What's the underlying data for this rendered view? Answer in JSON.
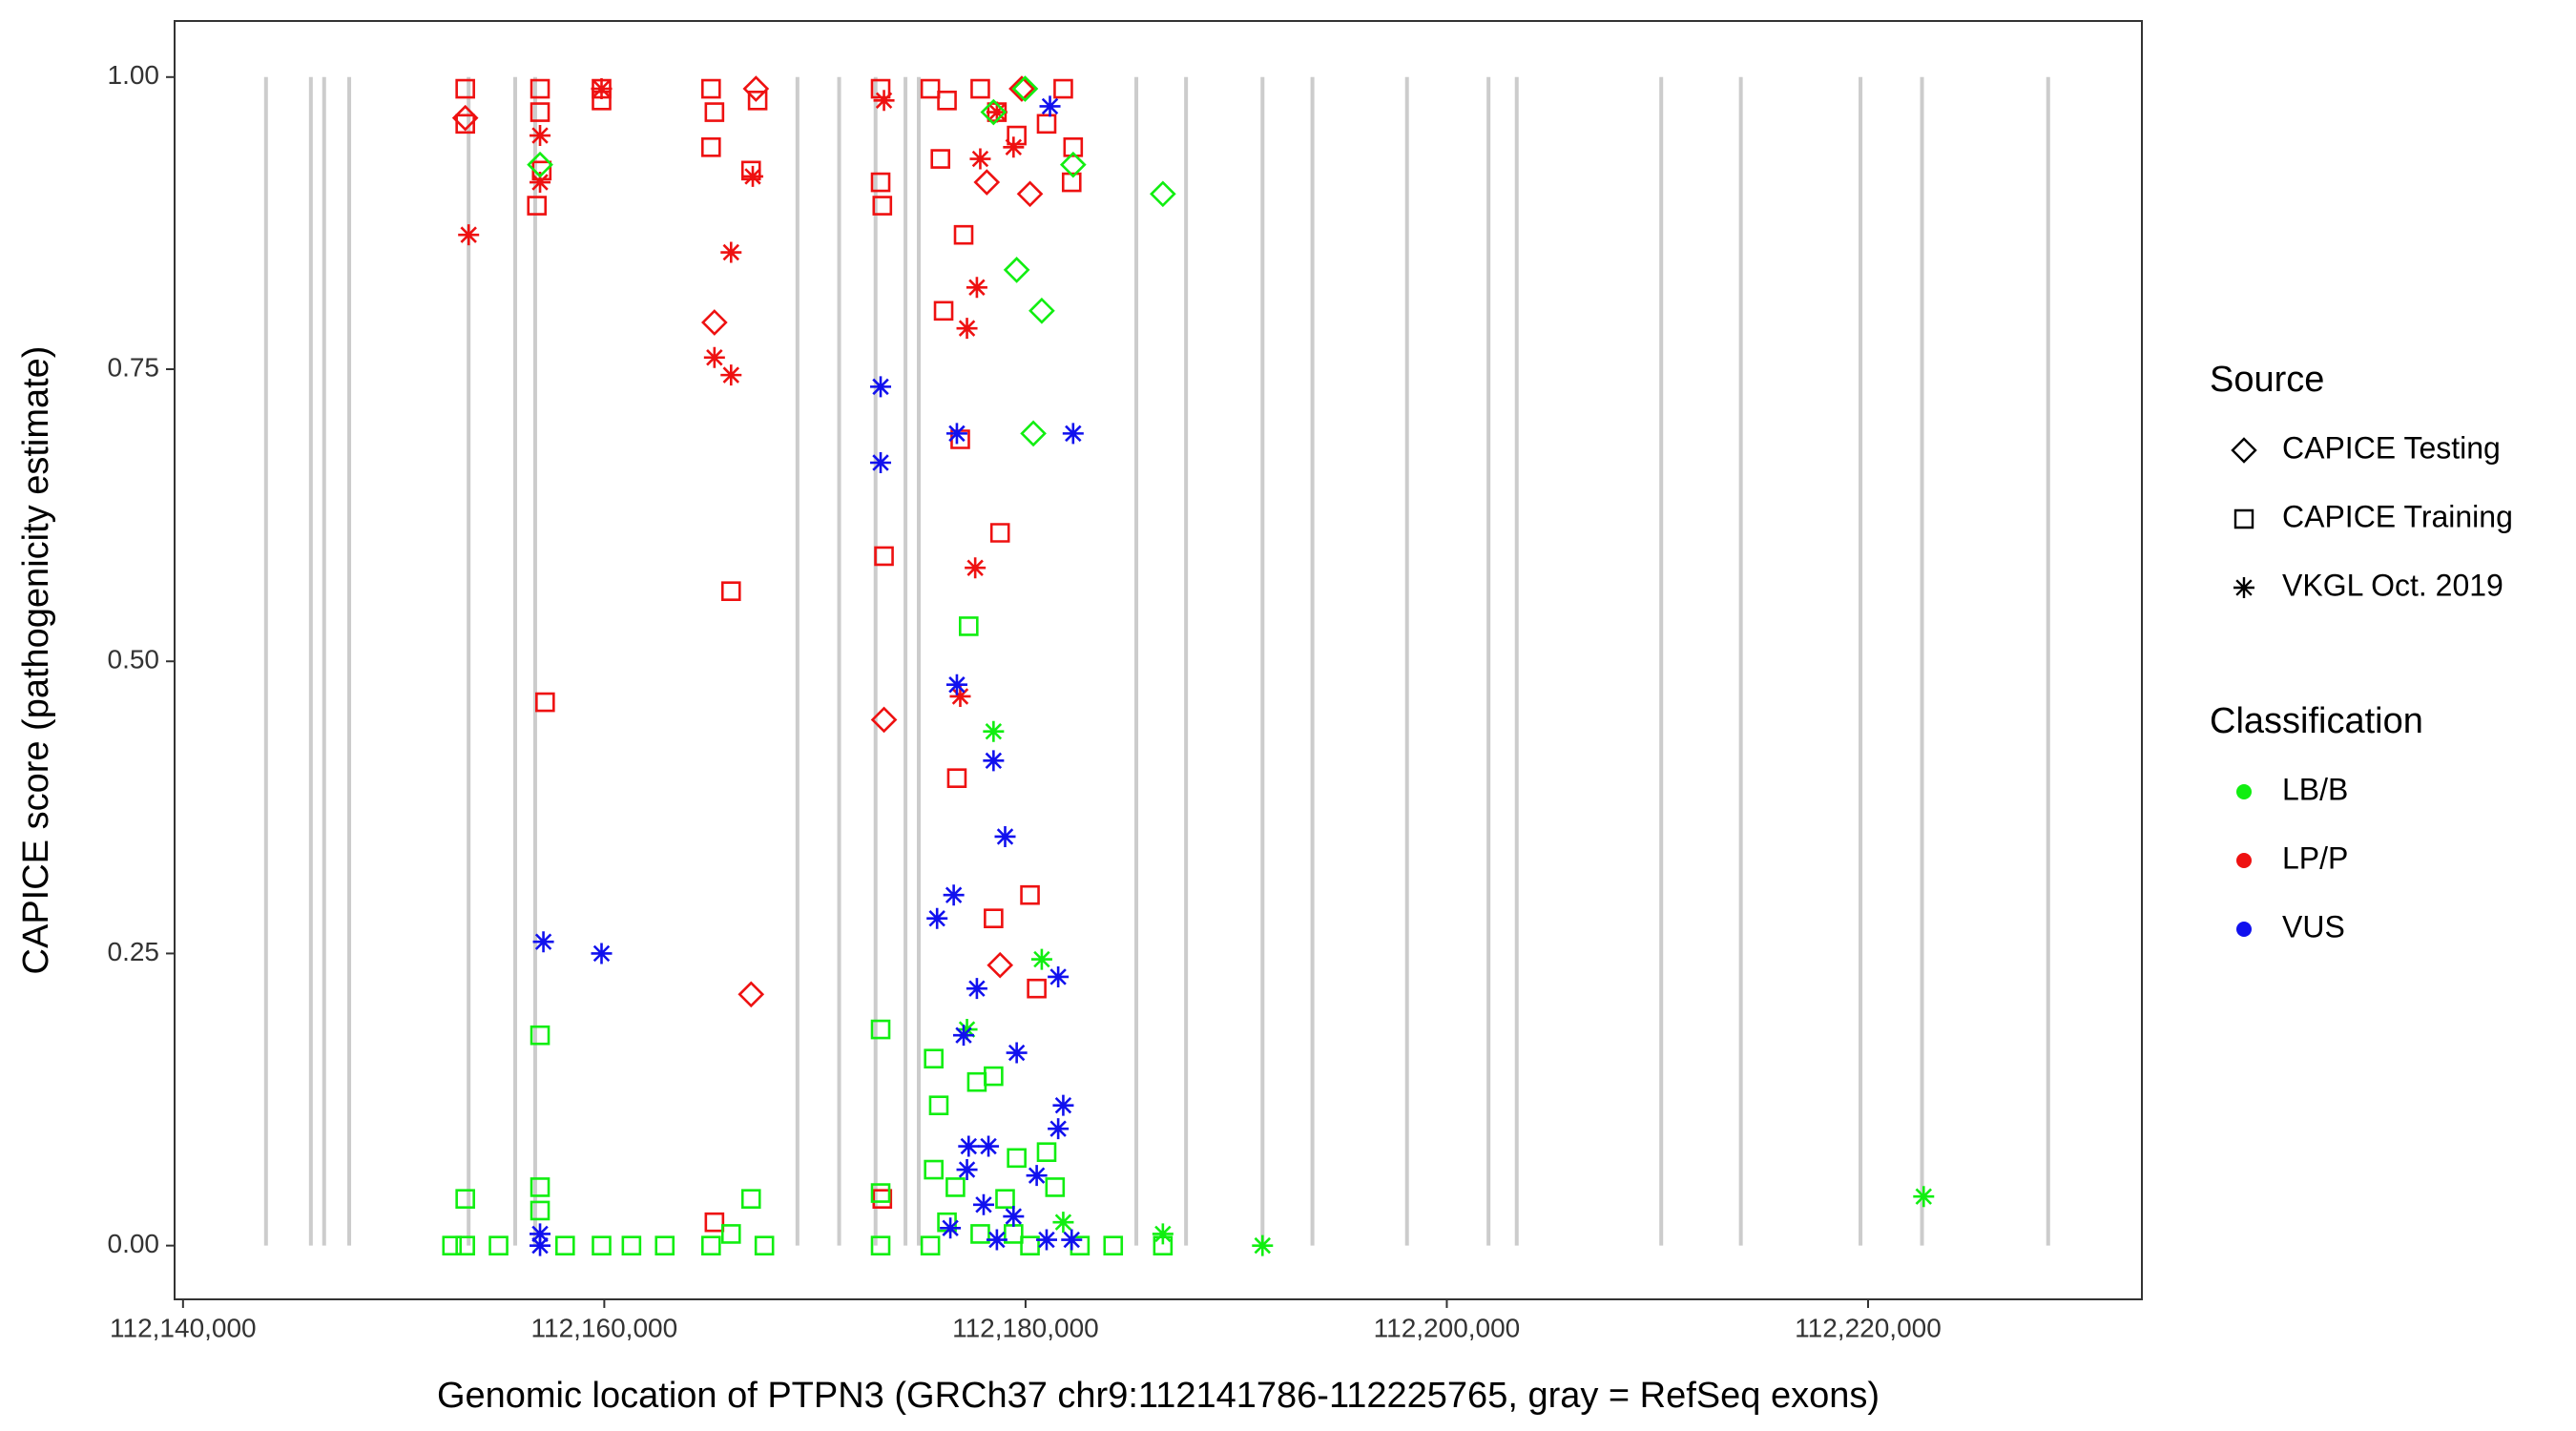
{
  "chart_data": {
    "type": "scatter",
    "xlabel": "Genomic location of PTPN3 (GRCh37 chr9:112141786-112225765, gray = RefSeq exons)",
    "ylabel": "CAPICE score (pathogenicity estimate)",
    "xlim": [
      112139600,
      112233000
    ],
    "ylim": [
      -0.046,
      1.048
    ],
    "xticks": [
      {
        "value": 112140000,
        "label": "112,140,000"
      },
      {
        "value": 112160000,
        "label": "112,160,000"
      },
      {
        "value": 112180000,
        "label": "112,180,000"
      },
      {
        "value": 112200000,
        "label": "112,200,000"
      },
      {
        "value": 112220000,
        "label": "112,220,000"
      }
    ],
    "yticks": [
      {
        "value": 0,
        "label": "0.00"
      },
      {
        "value": 0.25,
        "label": "0.25"
      },
      {
        "value": 0.5,
        "label": "0.50"
      },
      {
        "value": 0.75,
        "label": "0.75"
      },
      {
        "value": 1,
        "label": "1.00"
      }
    ],
    "exon_color": "#cccccc",
    "exons": [
      112143940,
      112146070,
      112146700,
      112147890,
      112153560,
      112155770,
      112156720,
      112169170,
      112171150,
      112172880,
      112174300,
      112174930,
      112185260,
      112187620,
      112191250,
      112193620,
      112198110,
      112201980,
      112203320,
      112210180,
      112213960,
      112219640,
      112222560,
      112228550
    ],
    "legends": [
      {
        "title": "Source",
        "items": [
          {
            "name": "CAPICE Testing",
            "shape": "diamond"
          },
          {
            "name": "CAPICE Training",
            "shape": "square"
          },
          {
            "name": "VKGL Oct. 2019",
            "shape": "asterisk"
          }
        ]
      },
      {
        "title": "Classification",
        "items": [
          {
            "name": "LB/B",
            "color": "#11ee11"
          },
          {
            "name": "LP/P",
            "color": "#ee1111"
          },
          {
            "name": "VUS",
            "color": "#1111ee"
          }
        ]
      }
    ],
    "series": [
      {
        "source": "CAPICE Training",
        "classification": "LP/P",
        "x": [
          112153400,
          112153400,
          112156950,
          112156950,
          112156800,
          112157030,
          112159870,
          112159870,
          112165070,
          112165230,
          112165070,
          112166970,
          112167280,
          112173120,
          112173120,
          112173200,
          112173280,
          112157190,
          112166020,
          112175960,
          112176110,
          112177060,
          112176900,
          112178790,
          112176740,
          112178480,
          112180210,
          112180530,
          112179580,
          112181000,
          112182190,
          112182260,
          112177850,
          112178640,
          112175480,
          112176270,
          112181790,
          112165230,
          112173200
        ],
        "y": [
          0.99,
          0.96,
          0.99,
          0.97,
          0.89,
          0.92,
          0.99,
          0.98,
          0.99,
          0.97,
          0.94,
          0.92,
          0.98,
          0.99,
          0.91,
          0.89,
          0.59,
          0.465,
          0.56,
          0.93,
          0.8,
          0.865,
          0.69,
          0.61,
          0.4,
          0.28,
          0.3,
          0.22,
          0.95,
          0.96,
          0.91,
          0.94,
          0.99,
          0.97,
          0.99,
          0.98,
          0.99,
          0.02,
          0.04
        ]
      },
      {
        "source": "CAPICE Testing",
        "classification": "LP/P",
        "x": [
          112153400,
          112165230,
          112166970,
          112173280,
          112178790,
          112180210,
          112167200,
          112178160,
          112179820
        ],
        "y": [
          0.965,
          0.79,
          0.215,
          0.45,
          0.24,
          0.9,
          0.99,
          0.91,
          0.99
        ]
      },
      {
        "source": "VKGL Oct. 2019",
        "classification": "LP/P",
        "x": [
          112153560,
          112156950,
          112156950,
          112159870,
          112165230,
          112166020,
          112166020,
          112167050,
          112177690,
          112177220,
          112177610,
          112176900,
          112177850,
          112178640,
          112179430,
          112173280
        ],
        "y": [
          0.865,
          0.91,
          0.95,
          0.99,
          0.76,
          0.745,
          0.85,
          0.915,
          0.82,
          0.785,
          0.58,
          0.47,
          0.93,
          0.97,
          0.94,
          0.98
        ]
      },
      {
        "source": "CAPICE Training",
        "classification": "LB/B",
        "x": [
          112153400,
          112153400,
          112152770,
          112154980,
          112156950,
          112156950,
          112156950,
          112158140,
          112159870,
          112161290,
          112162870,
          112165070,
          112166020,
          112166970,
          112167600,
          112173120,
          112173120,
          112173120,
          112175640,
          112175880,
          112177300,
          112177690,
          112178480,
          112175640,
          112176670,
          112179030,
          112179580,
          112181000,
          112181400,
          112176270,
          112177850,
          112179430,
          112182580,
          112184160,
          112186520,
          112175480,
          112180210
        ],
        "y": [
          0.04,
          0,
          0,
          0,
          0.05,
          0.18,
          0.03,
          0,
          0,
          0,
          0,
          0,
          0.01,
          0.04,
          0,
          0.185,
          0.045,
          0,
          0.16,
          0.12,
          0.53,
          0.14,
          0.145,
          0.065,
          0.05,
          0.04,
          0.075,
          0.08,
          0.05,
          0.02,
          0.01,
          0.01,
          0,
          0,
          0,
          0,
          0
        ]
      },
      {
        "source": "CAPICE Testing",
        "classification": "LB/B",
        "x": [
          112156950,
          112179580,
          112180770,
          112180370,
          112182260,
          112186520,
          112179980,
          112178480
        ],
        "y": [
          0.925,
          0.835,
          0.8,
          0.695,
          0.925,
          0.9,
          0.99,
          0.97
        ]
      },
      {
        "source": "VKGL Oct. 2019",
        "classification": "LB/B",
        "x": [
          112178480,
          112180770,
          112177220,
          112222640,
          112191250,
          112186520,
          112181790
        ],
        "y": [
          0.44,
          0.245,
          0.185,
          0.042,
          0,
          0.01,
          0.02
        ]
      },
      {
        "source": "VKGL Oct. 2019",
        "classification": "VUS",
        "x": [
          112173120,
          112173120,
          112176740,
          112182260,
          112157110,
          112159870,
          112176740,
          112178480,
          112179030,
          112176590,
          112175800,
          112177690,
          112181550,
          112177060,
          112179580,
          112181790,
          112181550,
          112177300,
          112178240,
          112177220,
          112180530,
          112178010,
          112179430,
          112156950,
          112156950,
          112176430,
          112178640,
          112181000,
          112182190,
          112181160
        ],
        "y": [
          0.735,
          0.67,
          0.695,
          0.695,
          0.26,
          0.25,
          0.48,
          0.415,
          0.35,
          0.3,
          0.28,
          0.22,
          0.23,
          0.18,
          0.165,
          0.12,
          0.1,
          0.085,
          0.085,
          0.065,
          0.06,
          0.035,
          0.025,
          0.01,
          0,
          0.015,
          0.005,
          0.005,
          0.005,
          0.975
        ]
      }
    ]
  }
}
